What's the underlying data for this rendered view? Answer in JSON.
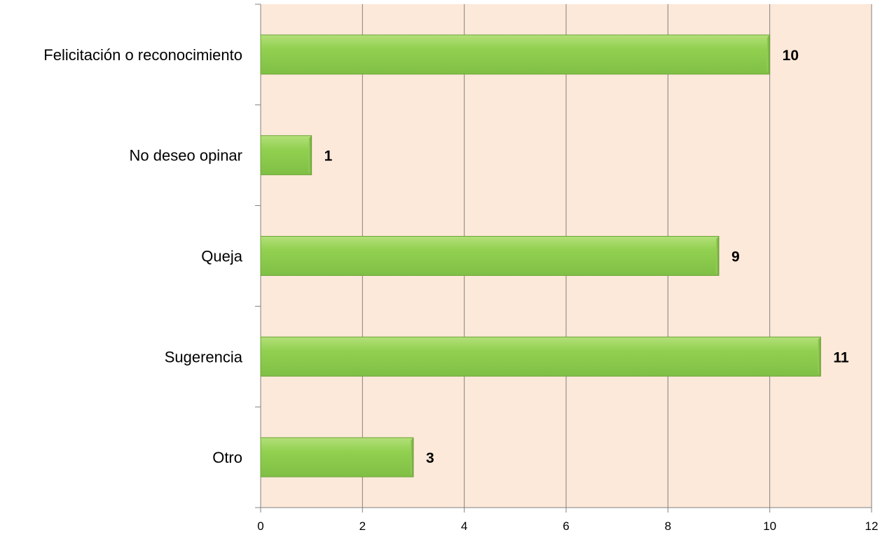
{
  "chart_data": {
    "type": "bar",
    "orientation": "horizontal",
    "categories": [
      "Felicitación o reconocimiento",
      "No deseo opinar",
      "Queja",
      "Sugerencia",
      "Otro"
    ],
    "values": [
      10,
      1,
      9,
      11,
      3
    ],
    "data_labels": [
      "10",
      "1",
      "9",
      "11",
      "3"
    ],
    "title": "",
    "xlabel": "",
    "ylabel": "",
    "xlim": [
      0,
      12
    ],
    "x_ticks": [
      0,
      2,
      4,
      6,
      8,
      10,
      12
    ],
    "grid": true,
    "legend": "none",
    "colors": {
      "bar": "#92D050",
      "bar_light": "#b3e07a",
      "bar_dark": "#6ea43a",
      "plot_background": "#FDE9D9",
      "gridline": "#808080"
    }
  }
}
